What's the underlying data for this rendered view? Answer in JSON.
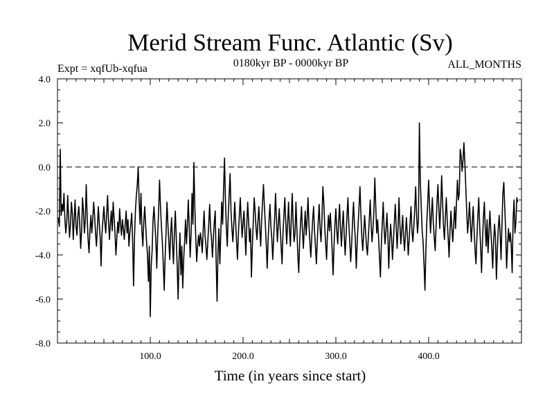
{
  "chart_data": {
    "type": "line",
    "title": "Merid Stream Func. Atlantic (Sv)",
    "subtitle_left": "Expt = xqfUb-xqfua",
    "subtitle_center": "0180kyr BP - 0000kyr BP",
    "subtitle_right": "ALL_MONTHS",
    "xlabel": "Time (in years since start)",
    "ylabel": "",
    "xlim": [
      0,
      500
    ],
    "ylim": [
      -8.0,
      4.0
    ],
    "x_ticks": [
      100,
      200,
      300,
      400
    ],
    "x_tick_labels": [
      "100.0",
      "200.0",
      "300.0",
      "400.0"
    ],
    "y_ticks": [
      -8,
      -6,
      -4,
      -2,
      0,
      2,
      4
    ],
    "y_tick_labels": [
      "-8.0",
      "-6.0",
      "-4.0",
      "-2.0",
      "0.0",
      "2.0",
      "4.0"
    ],
    "reference_line": {
      "y": 0.0,
      "style": "dashed"
    },
    "line_color": "#000000",
    "series": [
      {
        "name": "Merid Stream Func. Atlantic",
        "x_start": 1,
        "x_step": 1,
        "values": [
          -2.3,
          -2.7,
          0.8,
          -2.2,
          -1.7,
          -2.0,
          -1.2,
          -2.4,
          -3.0,
          -2.5,
          -1.3,
          -2.3,
          -3.2,
          -2.6,
          -1.6,
          -2.1,
          -3.3,
          -2.4,
          -1.5,
          -2.7,
          -3.1,
          -2.2,
          -1.8,
          -2.6,
          -3.7,
          -2.9,
          -1.4,
          -2.0,
          -3.0,
          -2.4,
          -0.8,
          -2.3,
          -3.3,
          -3.9,
          -2.9,
          -2.2,
          -3.0,
          -2.4,
          -1.6,
          -2.2,
          -3.0,
          -3.6,
          -2.8,
          -1.8,
          -2.5,
          -3.2,
          -4.5,
          -3.0,
          -2.4,
          -1.8,
          -2.5,
          -3.0,
          -2.2,
          -1.3,
          -2.4,
          -3.3,
          -2.6,
          -2.0,
          -2.9,
          -1.6,
          -2.3,
          -3.0,
          -4.0,
          -3.2,
          -2.5,
          -3.0,
          -1.9,
          -2.6,
          -3.1,
          -2.4,
          -2.8,
          -3.3,
          -2.6,
          -2.0,
          -3.0,
          -2.4,
          -3.6,
          -3.0,
          -2.6,
          -2.1,
          -3.4,
          -5.4,
          -3.2,
          -2.0,
          -1.3,
          -0.8,
          0.0,
          -1.6,
          -2.6,
          -1.2,
          -2.9,
          -3.6,
          -2.5,
          -1.8,
          -2.6,
          -3.4,
          -4.0,
          -5.2,
          -3.6,
          -6.8,
          -4.5,
          -3.8,
          -2.4,
          -1.8,
          -2.6,
          -3.3,
          -4.6,
          -3.1,
          -2.0,
          -0.6,
          -1.8,
          -2.7,
          -3.4,
          -4.4,
          -5.6,
          -4.1,
          -3.0,
          -1.6,
          -2.6,
          -3.4,
          -4.2,
          -3.0,
          -2.3,
          -3.5,
          -4.4,
          -3.0,
          -2.0,
          -3.2,
          -4.5,
          -6.0,
          -4.2,
          -3.0,
          -4.9,
          -3.6,
          -5.5,
          -4.2,
          -3.4,
          -2.4,
          -3.5,
          -2.6,
          -1.5,
          -2.8,
          -4.1,
          -3.0,
          -1.2,
          -2.6,
          0.2,
          -1.8,
          -3.2,
          -4.3,
          -3.6,
          -3.1,
          -3.6,
          -3.0,
          -3.3,
          -3.9,
          -2.9,
          -2.0,
          -3.1,
          -3.6,
          -4.2,
          -3.4,
          -2.6,
          -1.7,
          -2.8,
          -3.3,
          -4.1,
          -3.2,
          -2.5,
          -2.0,
          -4.3,
          -6.1,
          -3.8,
          -2.8,
          -4.4,
          -3.0,
          -1.6,
          -2.6,
          -1.0,
          0.4,
          -1.5,
          -2.8,
          -3.6,
          -2.2,
          -1.3,
          -0.3,
          -2.0,
          -2.8,
          -3.4,
          -2.6,
          -1.6,
          -2.5,
          -3.4,
          -4.2,
          -3.0,
          -2.2,
          -1.4,
          -2.4,
          -3.2,
          -2.5,
          -2.0,
          -3.0,
          -4.0,
          -2.6,
          -1.6,
          -2.5,
          -3.4,
          -2.8,
          -5.0,
          -3.6,
          -2.5,
          -1.4,
          -2.0,
          -2.8,
          -3.3,
          -2.5,
          -1.8,
          -2.8,
          -3.6,
          -2.4,
          -1.6,
          -0.8,
          -1.8,
          -2.6,
          -3.5,
          -4.6,
          -3.3,
          -2.4,
          -1.7,
          -2.7,
          -3.3,
          -4.2,
          -3.2,
          -2.3,
          -1.2,
          -2.4,
          -3.4,
          -2.6,
          -1.9,
          -2.8,
          -3.6,
          -4.4,
          -3.0,
          -2.2,
          -1.4,
          -2.5,
          -3.5,
          -2.6,
          -1.6,
          -2.8,
          -3.6,
          -2.3,
          -1.2,
          -2.6,
          -3.4,
          -3.0,
          -1.6,
          -2.8,
          -4.0,
          -4.8,
          -3.4,
          -2.5,
          -1.8,
          -2.9,
          -3.7,
          -2.8,
          -2.0,
          -3.1,
          -2.4,
          -1.4,
          -2.6,
          -3.4,
          -4.1,
          -3.2,
          -2.4,
          -1.8,
          -2.9,
          -3.6,
          -4.4,
          -3.3,
          -2.5,
          -1.7,
          -2.8,
          -3.4,
          -2.4,
          -0.9,
          -1.6,
          -2.7,
          -3.5,
          -4.2,
          -3.0,
          -2.2,
          -2.9,
          -2.1,
          -2.8,
          -3.8,
          -4.9,
          -3.6,
          -2.6,
          -1.9,
          -2.9,
          -3.5,
          -2.5,
          -1.7,
          -2.8,
          -3.6,
          -2.7,
          -2.0,
          -3.1,
          -4.0,
          -3.1,
          -2.2,
          -1.4,
          -2.6,
          -3.4,
          -4.3,
          -3.5,
          -2.5,
          -1.6,
          -2.6,
          -3.3,
          -4.6,
          -3.4,
          -2.6,
          -1.8,
          -0.9,
          -2.2,
          -3.2,
          -3.8,
          -3.0,
          -2.2,
          -2.9,
          -3.6,
          -4.0,
          -3.2,
          -2.4,
          -1.5,
          -2.6,
          -3.4,
          -2.8,
          -2.0,
          -0.5,
          -1.8,
          -3.0,
          -2.4,
          -3.2,
          -4.1,
          -5.0,
          -3.5,
          -2.6,
          -1.6,
          -2.8,
          -3.5,
          -2.9,
          -2.1,
          -3.0,
          -4.6,
          -3.4,
          -2.6,
          -3.2,
          -4.2,
          -3.4,
          -2.5,
          -1.7,
          -2.7,
          -3.7,
          -2.8,
          -1.4,
          -2.6,
          -3.5,
          -2.9,
          -2.2,
          -3.2,
          -3.8,
          -3.0,
          -2.3,
          -3.1,
          -4.0,
          -3.3,
          -2.5,
          -1.8,
          -2.9,
          -3.4,
          -2.7,
          -1.9,
          -0.9,
          -2.2,
          -3.0,
          -2.4,
          2.0,
          -0.6,
          -1.8,
          -2.9,
          -3.4,
          -4.4,
          -5.6,
          -3.8,
          -2.5,
          -1.6,
          -0.6,
          -1.9,
          -3.0,
          -2.2,
          -1.4,
          -2.5,
          -3.2,
          -3.8,
          -2.7,
          -1.6,
          -0.8,
          -1.9,
          -2.8,
          -1.8,
          -0.4,
          -1.6,
          -2.7,
          -3.3,
          -2.3,
          -1.4,
          -2.4,
          -3.2,
          -4.1,
          -2.9,
          -2.0,
          -2.8,
          -3.4,
          -2.6,
          -1.8,
          -2.8,
          -1.6,
          -0.6,
          -1.5,
          -1.2,
          0.8,
          0.5,
          -0.2,
          0.3,
          1.1,
          0.2,
          -0.9,
          -2.0,
          -3.0,
          -2.4,
          -1.6,
          -2.6,
          -3.4,
          -2.5,
          -1.8,
          -2.9,
          -3.8,
          -4.4,
          -3.2,
          -2.2,
          -1.4,
          -2.7,
          -3.6,
          -4.8,
          -3.4,
          -2.3,
          -1.6,
          -2.8,
          -3.6,
          -2.4,
          -3.9,
          -3.0,
          -2.0,
          -2.9,
          -3.6,
          -4.6,
          -3.4,
          -2.6,
          -3.2,
          -5.1,
          -3.8,
          -2.8,
          -2.2,
          -3.0,
          -4.2,
          -2.6,
          -1.2,
          -0.7,
          -1.8,
          -2.9,
          -4.6,
          -3.6,
          -2.8,
          -3.4,
          -3.0,
          -3.6,
          -4.8,
          -2.4,
          -1.5,
          -3.0,
          -2.5,
          -1.4,
          -1.6
        ]
      }
    ]
  }
}
